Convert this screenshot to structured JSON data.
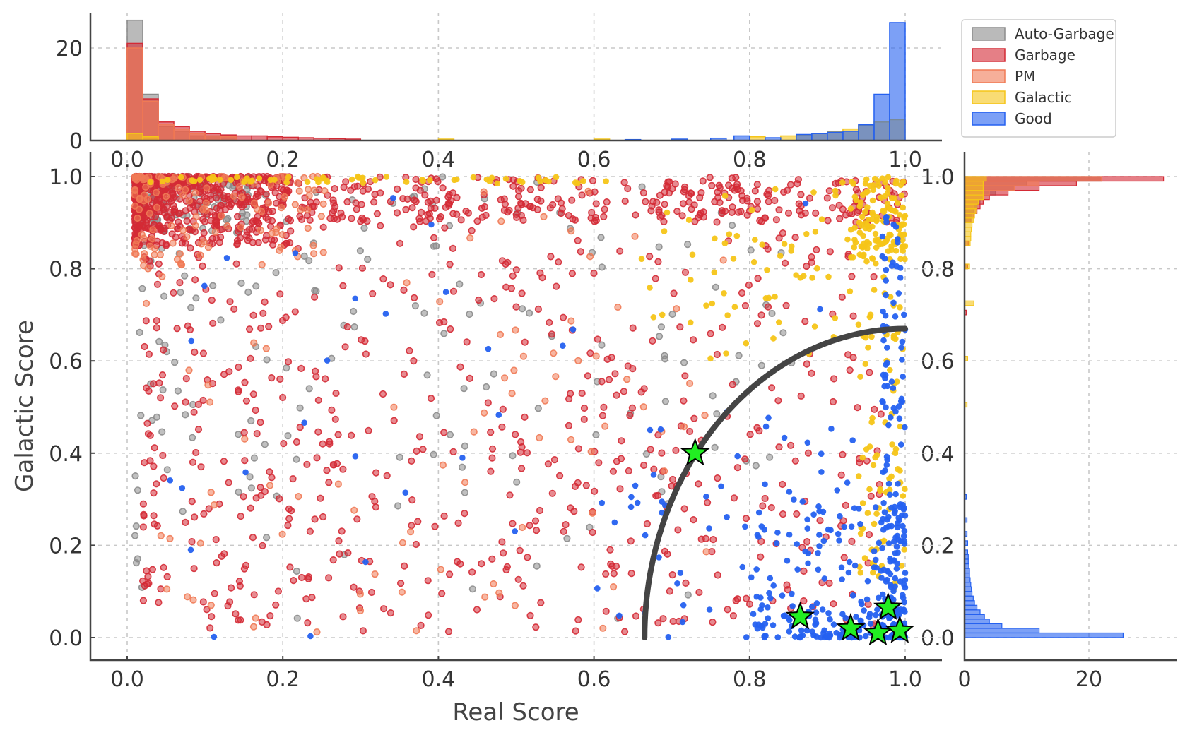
{
  "chart_data": {
    "type": "scatter",
    "title": "",
    "xlabel": "Real Score",
    "ylabel": "Galactic Score",
    "xlim": [
      -0.05,
      1.05
    ],
    "ylim": [
      -0.05,
      1.02
    ],
    "x_ticks": [
      "0.0",
      "0.2",
      "0.4",
      "0.6",
      "0.8",
      "1.0"
    ],
    "y_ticks": [
      "0.0",
      "0.2",
      "0.4",
      "0.6",
      "0.8",
      "1.0"
    ],
    "grid": true,
    "legend_position": "top-right",
    "marginal_top": {
      "type": "histogram",
      "bin_width": 0.02,
      "y_ticks": [
        "0",
        "20"
      ],
      "ylim": [
        0,
        27
      ]
    },
    "marginal_right": {
      "type": "histogram",
      "bin_width": 0.01,
      "x_ticks": [
        "0",
        "20"
      ],
      "xlim": [
        0,
        33
      ]
    },
    "series": [
      {
        "name": "Auto-Garbage",
        "color": "#8c8c8c",
        "n": 320
      },
      {
        "name": "Garbage",
        "color": "#d42a35",
        "n": 1500
      },
      {
        "name": "PM",
        "color": "#f07a55",
        "n": 220
      },
      {
        "name": "Galactic",
        "color": "#f5c518",
        "n": 330
      },
      {
        "name": "Good",
        "color": "#2561f0",
        "n": 430
      }
    ],
    "histograms": {
      "top": {
        "Auto-Garbage": [
          [
            0.0,
            26
          ],
          [
            0.02,
            10
          ],
          [
            0.04,
            3
          ],
          [
            0.06,
            2
          ],
          [
            0.08,
            1
          ],
          [
            0.1,
            1
          ],
          [
            0.12,
            1
          ]
        ],
        "Garbage": [
          [
            0.0,
            21
          ],
          [
            0.02,
            9
          ],
          [
            0.04,
            4
          ],
          [
            0.06,
            3
          ],
          [
            0.08,
            2
          ],
          [
            0.1,
            1.5
          ],
          [
            0.12,
            1.2
          ],
          [
            0.14,
            1
          ],
          [
            0.16,
            1
          ],
          [
            0.18,
            0.8
          ],
          [
            0.2,
            0.7
          ],
          [
            0.22,
            0.6
          ],
          [
            0.24,
            0.5
          ],
          [
            0.26,
            0.4
          ],
          [
            0.28,
            0.3
          ]
        ],
        "PM": [
          [
            0.0,
            20
          ],
          [
            0.02,
            8.5
          ],
          [
            0.04,
            3.5
          ],
          [
            0.06,
            2.5
          ],
          [
            0.08,
            1.5
          ],
          [
            0.1,
            1
          ],
          [
            0.12,
            0.8
          ]
        ],
        "Galactic": [
          [
            0.0,
            1.5
          ],
          [
            0.02,
            0.8
          ],
          [
            0.4,
            0.3
          ],
          [
            0.6,
            0.3
          ],
          [
            0.8,
            0.8
          ],
          [
            0.84,
            1
          ],
          [
            0.86,
            1.2
          ],
          [
            0.88,
            1.5
          ],
          [
            0.9,
            2
          ],
          [
            0.92,
            2.5
          ],
          [
            0.94,
            3.3
          ],
          [
            0.96,
            4
          ],
          [
            0.98,
            4.5
          ]
        ],
        "Good": [
          [
            0.64,
            0.2
          ],
          [
            0.7,
            0.3
          ],
          [
            0.75,
            0.5
          ],
          [
            0.78,
            1
          ],
          [
            0.82,
            0.6
          ],
          [
            0.86,
            1.3
          ],
          [
            0.88,
            1.5
          ],
          [
            0.9,
            1.8
          ],
          [
            0.92,
            2
          ],
          [
            0.94,
            3.4
          ],
          [
            0.96,
            10
          ],
          [
            0.98,
            25.5
          ]
        ]
      },
      "right": {
        "Auto-Garbage": [
          [
            0.99,
            22
          ],
          [
            0.98,
            10
          ],
          [
            0.97,
            8
          ],
          [
            0.96,
            5
          ],
          [
            0.95,
            3
          ],
          [
            0.94,
            2.5
          ],
          [
            0.93,
            2
          ],
          [
            0.92,
            1.5
          ],
          [
            0.91,
            1.2
          ],
          [
            0.9,
            1
          ]
        ],
        "Garbage": [
          [
            0.99,
            32
          ],
          [
            0.98,
            18
          ],
          [
            0.97,
            12
          ],
          [
            0.96,
            7
          ],
          [
            0.95,
            4
          ],
          [
            0.94,
            3
          ],
          [
            0.93,
            2.5
          ],
          [
            0.92,
            2
          ],
          [
            0.91,
            1.5
          ],
          [
            0.9,
            1.2
          ],
          [
            0.85,
            0.6
          ],
          [
            0.8,
            0.5
          ],
          [
            0.7,
            0.3
          ]
        ],
        "PM": [
          [
            0.99,
            22
          ],
          [
            0.98,
            12
          ],
          [
            0.97,
            8
          ],
          [
            0.96,
            4
          ],
          [
            0.95,
            3
          ],
          [
            0.94,
            2
          ],
          [
            0.93,
            1.5
          ]
        ],
        "Galactic": [
          [
            0.99,
            3.5
          ],
          [
            0.98,
            3
          ],
          [
            0.97,
            3
          ],
          [
            0.96,
            3
          ],
          [
            0.95,
            3
          ],
          [
            0.94,
            2.2
          ],
          [
            0.93,
            2
          ],
          [
            0.92,
            1.8
          ],
          [
            0.91,
            1.6
          ],
          [
            0.9,
            1.4
          ],
          [
            0.89,
            1.2
          ],
          [
            0.88,
            1.1
          ],
          [
            0.87,
            1
          ],
          [
            0.86,
            1
          ],
          [
            0.85,
            0.9
          ],
          [
            0.8,
            0.8
          ],
          [
            0.72,
            1.5
          ],
          [
            0.6,
            0.5
          ],
          [
            0.5,
            0.4
          ]
        ],
        "Good": [
          [
            0.0,
            25.5
          ],
          [
            0.01,
            12
          ],
          [
            0.02,
            6
          ],
          [
            0.03,
            4
          ],
          [
            0.04,
            3.2
          ],
          [
            0.05,
            2.5
          ],
          [
            0.06,
            2
          ],
          [
            0.07,
            1.6
          ],
          [
            0.08,
            1.4
          ],
          [
            0.09,
            1.2
          ],
          [
            0.1,
            1.1
          ],
          [
            0.11,
            1
          ],
          [
            0.12,
            0.9
          ],
          [
            0.13,
            0.8
          ],
          [
            0.14,
            0.8
          ],
          [
            0.15,
            0.7
          ],
          [
            0.16,
            0.6
          ],
          [
            0.17,
            0.6
          ],
          [
            0.18,
            0.5
          ],
          [
            0.2,
            0.5
          ],
          [
            0.22,
            0.4
          ],
          [
            0.25,
            0.4
          ],
          [
            0.3,
            0.3
          ]
        ]
      }
    },
    "threshold_curve": {
      "center": [
        1.0,
        0.0
      ],
      "radius_x": 0.335,
      "radius_y": 0.67,
      "color": "#444444"
    },
    "highlighted_points": {
      "marker": "star",
      "color": "#22ee22",
      "points": [
        [
          0.73,
          0.4
        ],
        [
          0.865,
          0.045
        ],
        [
          0.93,
          0.02
        ],
        [
          0.965,
          0.01
        ],
        [
          0.978,
          0.065
        ],
        [
          0.993,
          0.015
        ]
      ]
    }
  }
}
